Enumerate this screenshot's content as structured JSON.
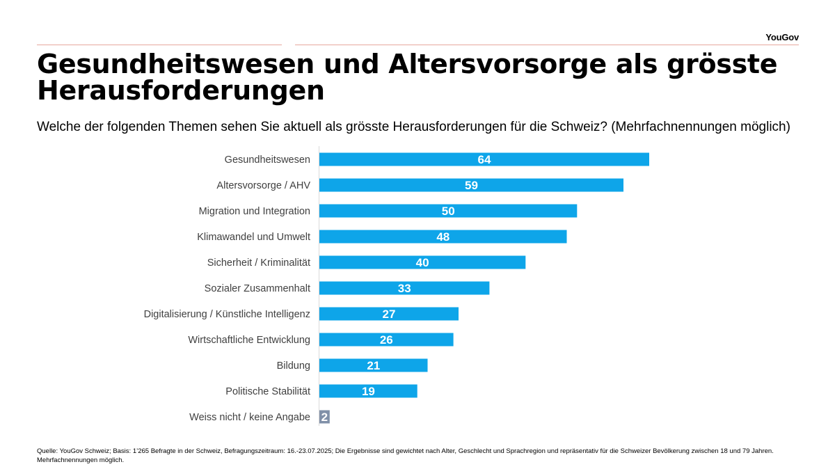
{
  "brand": {
    "logo_text": "YouGov"
  },
  "header": {
    "title": "Gesundheitswesen und Altersvorsorge als grösste Herausforderungen",
    "subtitle": "Welche der folgenden Themen sehen Sie aktuell als grösste Herausforderungen für die Schweiz? (Mehrfachnennungen möglich)"
  },
  "chart_data": {
    "type": "bar",
    "orientation": "horizontal",
    "categories": [
      "Gesundheitswesen",
      "Altersvorsorge / AHV",
      "Migration und Integration",
      "Klimawandel und Umwelt",
      "Sicherheit / Kriminalität",
      "Sozialer Zusammenhalt",
      "Digitalisierung / Künstliche Intelligenz",
      "Wirtschaftliche Entwicklung",
      "Bildung",
      "Politische Stabilität",
      "Weiss nicht / keine Angabe"
    ],
    "values": [
      64,
      59,
      50,
      48,
      40,
      33,
      27,
      26,
      21,
      19,
      2
    ],
    "colors": [
      "#0ea5e9",
      "#0ea5e9",
      "#0ea5e9",
      "#0ea5e9",
      "#0ea5e9",
      "#0ea5e9",
      "#0ea5e9",
      "#0ea5e9",
      "#0ea5e9",
      "#0ea5e9",
      "#8090a8"
    ],
    "data_labels": true,
    "xlim": [
      0,
      100
    ],
    "grid": false,
    "legend": "none"
  },
  "footer": {
    "source": "Quelle: YouGov Schweiz; Basis: 1’265 Befragte in der Schweiz, Befragungszeitraum: 16.-23.07.2025; Die Ergebnisse sind gewichtet nach Alter, Geschlecht und Sprachregion und repräsentativ für die Schweizer Bevölkerung zwischen 18 und 79 Jahren. Mehrfachnennungen möglich."
  }
}
